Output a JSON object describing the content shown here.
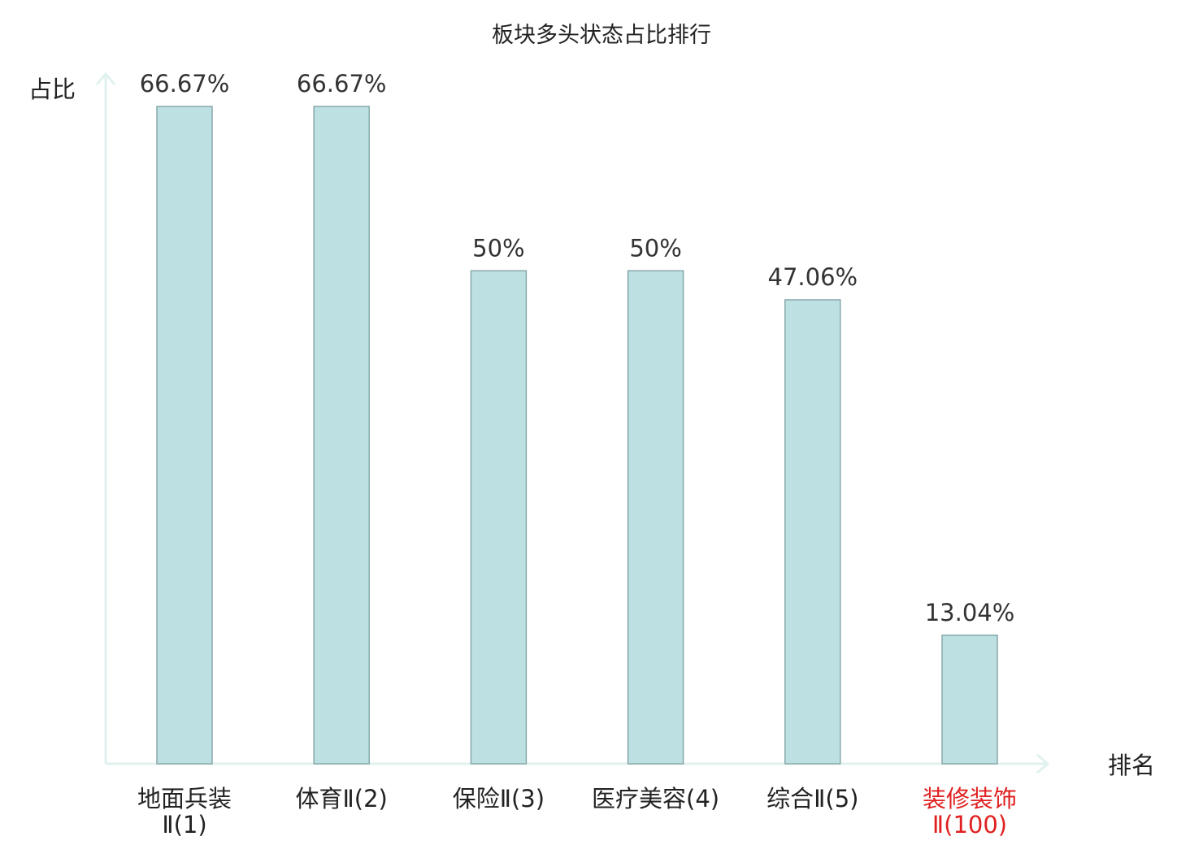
{
  "chart_data": {
    "type": "bar",
    "title": "板块多头状态占比排行",
    "ylabel": "占比",
    "xlabel": "排名",
    "ylim": [
      0,
      70
    ],
    "grid": false,
    "categories": [
      {
        "line1": "地面兵装",
        "line2": "Ⅱ(1)",
        "highlight": false
      },
      {
        "line1": "体育Ⅱ(2)",
        "line2": "",
        "highlight": false
      },
      {
        "line1": "保险Ⅱ(3)",
        "line2": "",
        "highlight": false
      },
      {
        "line1": "医疗美容(4)",
        "line2": "",
        "highlight": false
      },
      {
        "line1": "综合Ⅱ(5)",
        "line2": "",
        "highlight": false
      },
      {
        "line1": "装修装饰",
        "line2": "Ⅱ(100)",
        "highlight": true
      }
    ],
    "values": [
      66.67,
      66.67,
      50,
      50,
      47.06,
      13.04
    ],
    "value_labels": [
      "66.67%",
      "66.67%",
      "50%",
      "50%",
      "47.06%",
      "13.04%"
    ],
    "colors": {
      "bar_fill": "#bde0e2",
      "bar_stroke": "#88a8aa",
      "axis": "#e0f2ef",
      "label_text": "#222222",
      "value_text": "#333333",
      "highlight_text": "#e02020"
    }
  }
}
